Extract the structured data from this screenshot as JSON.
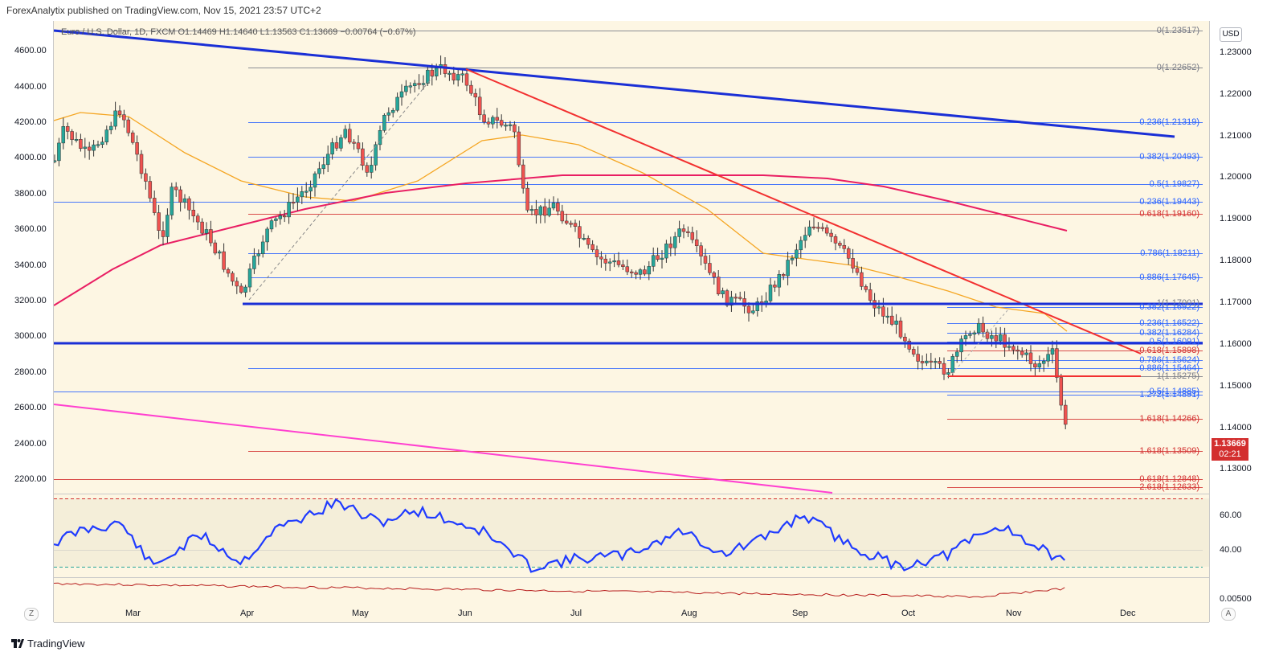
{
  "header": {
    "publisher_text": "ForexAnalytix published on TradingView.com, Nov 15, 2021 23:57 UTC+2"
  },
  "symbol_info": "Euro / U.S. Dollar, 1D, FXCM  O1.14469  H1.14640  L1.13563  C1.13669  −0.00764 (−0.67%)",
  "currency_label": "USD",
  "last_price": {
    "value": "1.13669",
    "countdown": "02:21"
  },
  "left_axis_labels": [
    "4600.00",
    "4400.00",
    "4200.00",
    "4000.00",
    "3800.00",
    "3600.00",
    "3400.00",
    "3200.00",
    "3000.00",
    "2800.00",
    "2600.00",
    "2400.00",
    "2200.00"
  ],
  "right_axis_labels": [
    "1.23000",
    "1.22000",
    "1.21000",
    "1.20000",
    "1.19000",
    "1.18000",
    "1.17000",
    "1.16000",
    "1.15000",
    "1.14000",
    "1.13000"
  ],
  "indicator_axis_labels": [
    "60.00",
    "40.00",
    "0.00500"
  ],
  "months": [
    "Mar",
    "Apr",
    "May",
    "Jun",
    "Jul",
    "Aug",
    "Sep",
    "Oct",
    "Nov",
    "Dec"
  ],
  "fib_labels": [
    {
      "text": "0(1.23517)",
      "color": "#787b86"
    },
    {
      "text": "0(1.22652)",
      "color": "#787b86"
    },
    {
      "text": "0.236(1.21319)",
      "color": "#2962ff"
    },
    {
      "text": "0.382(1.20493)",
      "color": "#2962ff"
    },
    {
      "text": "0.5(1.19827)",
      "color": "#2962ff"
    },
    {
      "text": "0.236(1.19443)",
      "color": "#2962ff"
    },
    {
      "text": "0.618(1.19160)",
      "color": "#d32f2f"
    },
    {
      "text": "0.786(1.18211)",
      "color": "#2962ff"
    },
    {
      "text": "0.886(1.17645)",
      "color": "#2962ff"
    },
    {
      "text": "1(1.17001)",
      "color": "#787b86"
    },
    {
      "text": "0.382(1.16922)",
      "color": "#2962ff"
    },
    {
      "text": "0.236(1.16522)",
      "color": "#2962ff"
    },
    {
      "text": "0.382(1.16284)",
      "color": "#2962ff"
    },
    {
      "text": "0.5(1.16091)",
      "color": "#2962ff"
    },
    {
      "text": "0.618(1.15898)",
      "color": "#d32f2f"
    },
    {
      "text": "0.786(1.15624)",
      "color": "#2962ff"
    },
    {
      "text": "0.886(1.15464)",
      "color": "#2962ff"
    },
    {
      "text": "1(1.15275)",
      "color": "#787b86"
    },
    {
      "text": "0.5(1.14885)",
      "color": "#2962ff"
    },
    {
      "text": "1.272(1.14891)",
      "color": "#2962ff"
    },
    {
      "text": "1.618(1.14266)",
      "color": "#d32f2f"
    },
    {
      "text": "1.618(1.13509)",
      "color": "#d32f2f"
    },
    {
      "text": "0.618(1.12848)",
      "color": "#d32f2f"
    },
    {
      "text": "2.618(1.12633)",
      "color": "#d32f2f"
    }
  ],
  "colors": {
    "bull": "#26a69a",
    "bear": "#ef5350",
    "price_tag": "#d32f2f",
    "trend_blue": "#1a2fd6",
    "trend_red": "#f23030",
    "ma_orange": "#f5a623",
    "ma_red": "#e91e63",
    "rsi": "#1f3bff",
    "magenta": "#ff40d0",
    "panel_bg": "#fdf6e3"
  },
  "footer": {
    "brand": "TradingView"
  },
  "buttons": {
    "z": "Z",
    "a": "A"
  }
}
